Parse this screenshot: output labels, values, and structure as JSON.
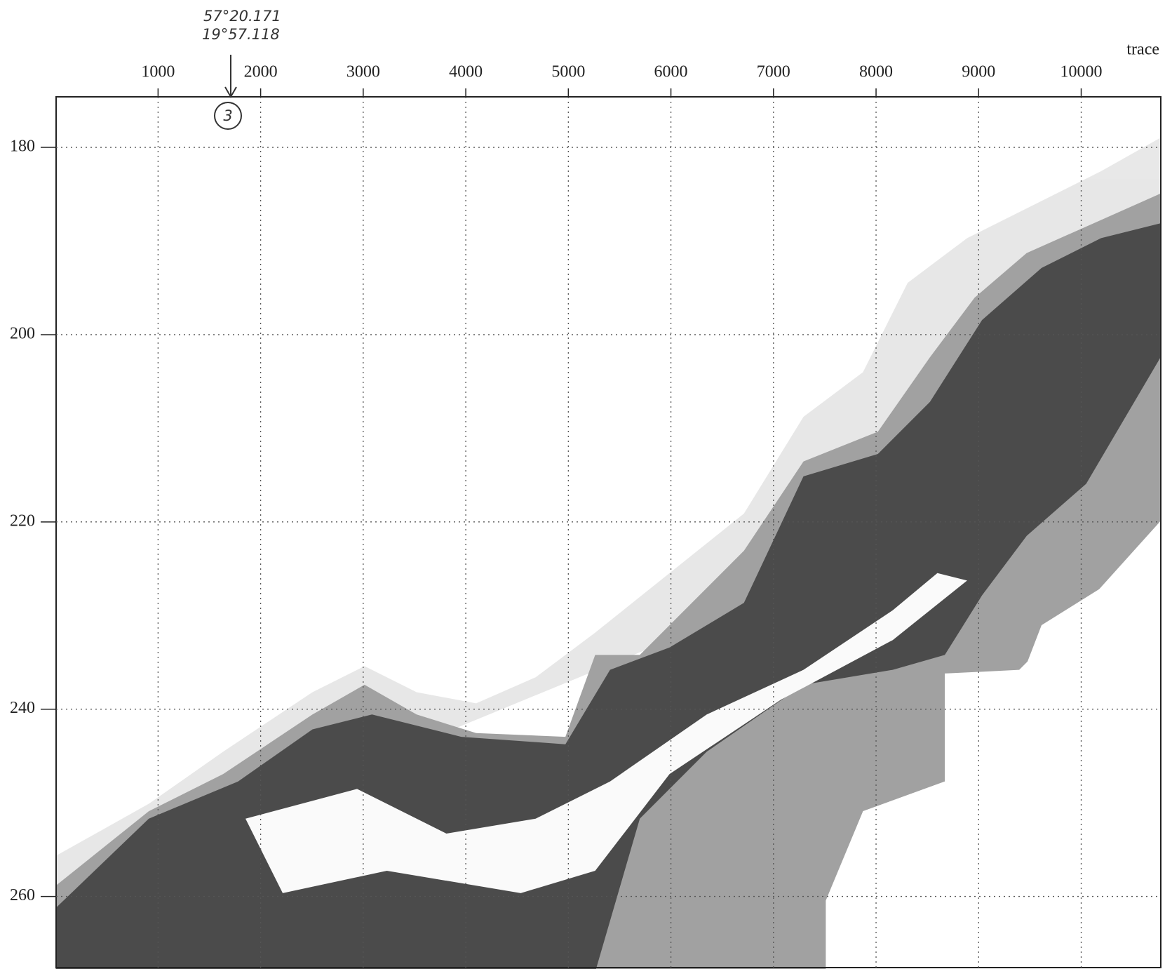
{
  "chart_data": {
    "type": "seismic",
    "x_label": "trace",
    "xlim": [
      6,
      10776
    ],
    "xticks": [
      1000,
      2000,
      3000,
      4000,
      5000,
      6000,
      7000,
      8000,
      9000,
      10000
    ],
    "ylim": [
      174.6,
      267.6
    ],
    "yticks": [
      180,
      200,
      220,
      240,
      260
    ],
    "y_inverted": true,
    "grid": true,
    "annotations": [
      "57°20.171",
      "19°57.118",
      "3"
    ]
  }
}
